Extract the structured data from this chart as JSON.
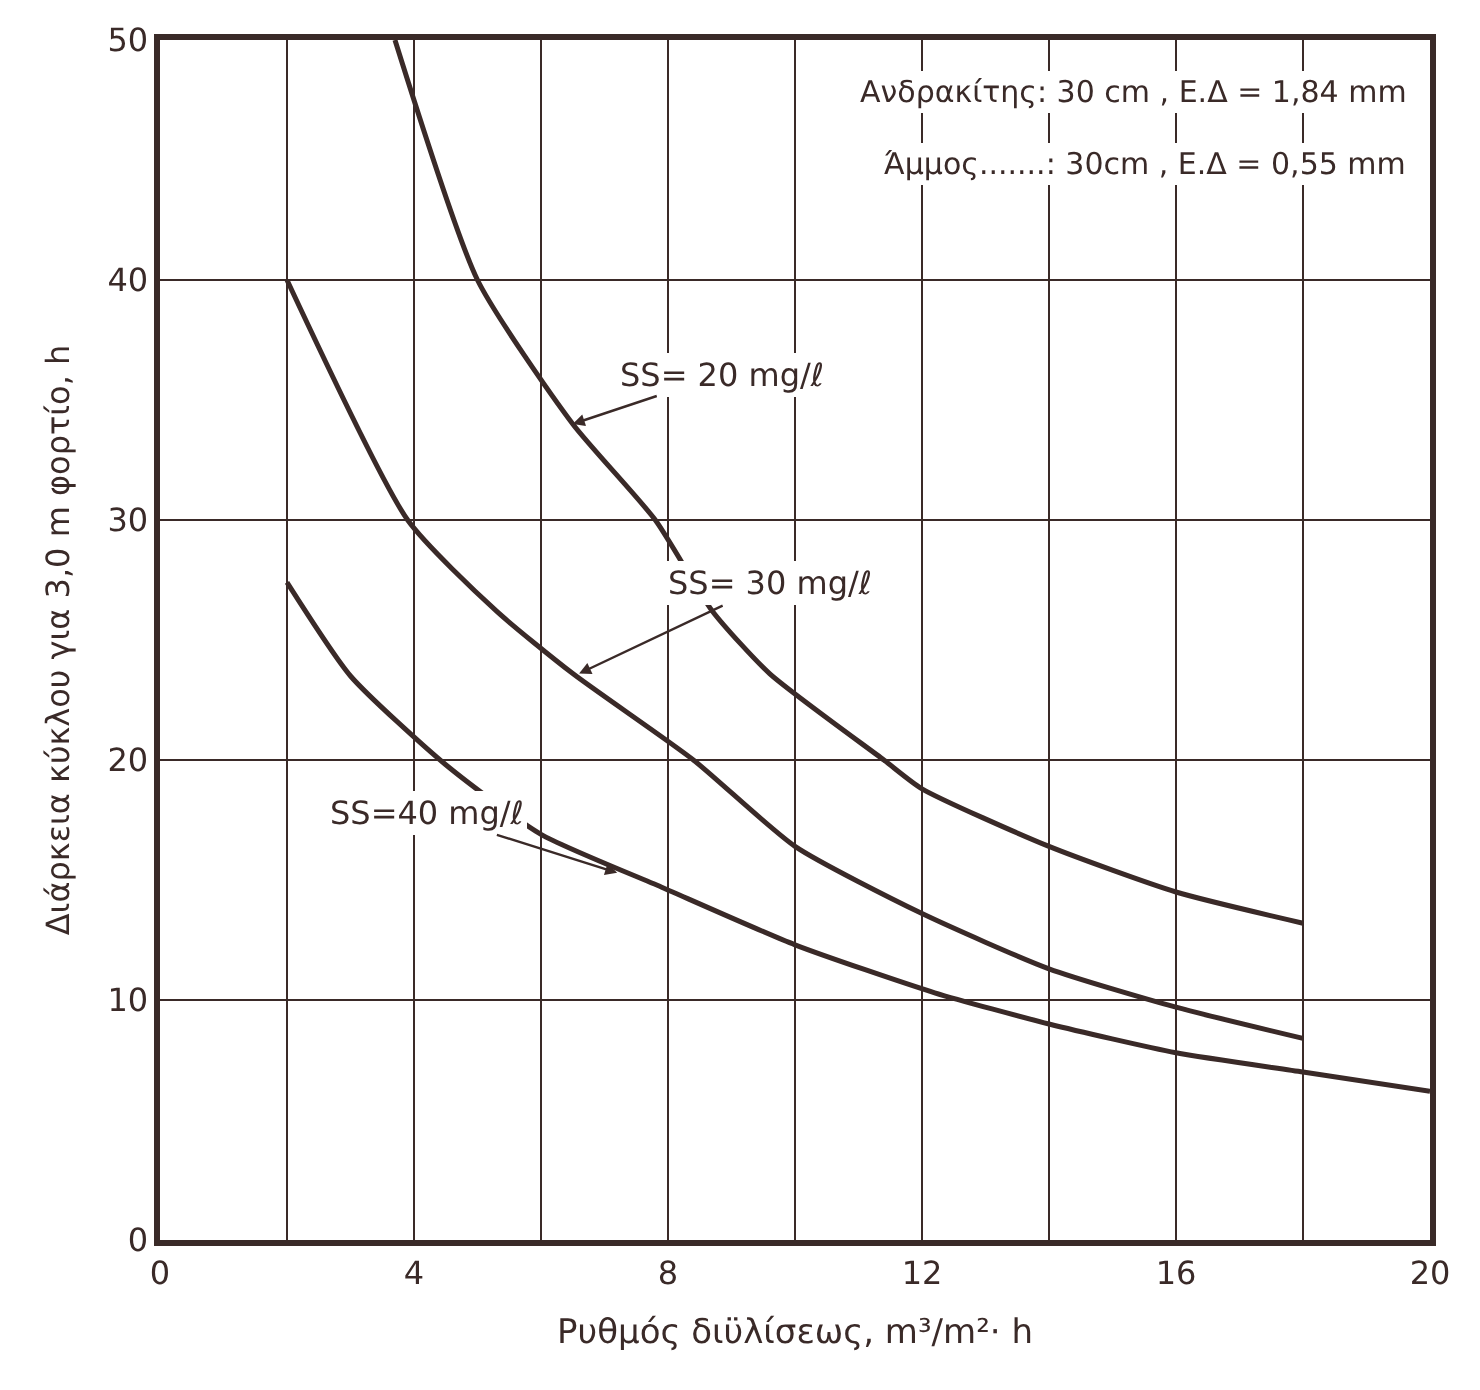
{
  "chart_data": {
    "type": "line",
    "xlabel": "Ρυθμός διϋλίσεως, m³/m²· h",
    "ylabel": "Διάρκεια κύκλου για 3,0 m φορτίο, h",
    "xlim": [
      0,
      20
    ],
    "ylim": [
      0,
      50
    ],
    "xticks": [
      0,
      {
        "value": 2,
        "label": null
      },
      4,
      {
        "value": 6,
        "label": null
      },
      8,
      {
        "value": 10,
        "label": null
      },
      12,
      {
        "value": 14,
        "label": null
      },
      16,
      {
        "value": 18,
        "label": null
      },
      20
    ],
    "yticks": [
      0,
      10,
      20,
      30,
      40,
      50
    ],
    "grid": true,
    "marker": "none",
    "line_style": "solid",
    "series": [
      {
        "color": "#3a2a28",
        "x": [
          3.7,
          5.0,
          6.5,
          7.8,
          8.7,
          9.6,
          11.4,
          12.0,
          14.0,
          16.0,
          18.0
        ],
        "values": [
          50,
          40,
          34,
          30,
          26.2,
          23.6,
          20,
          18.8,
          16.4,
          14.5,
          13.2
        ]
      },
      {
        "color": "#3a2a28",
        "x": [
          2.0,
          3.9,
          5.3,
          6.5,
          8.4,
          10.0,
          12.0,
          14.0,
          16.0,
          18.0
        ],
        "values": [
          40,
          30,
          26.2,
          23.6,
          20,
          16.4,
          13.6,
          11.3,
          9.7,
          8.4
        ]
      },
      {
        "color": "#3a2a28",
        "x": [
          2.0,
          3.0,
          4.5,
          6.0,
          7.9,
          10.0,
          12.2,
          14.0,
          16.0,
          18.0,
          20.0
        ],
        "values": [
          27.4,
          23.5,
          19.8,
          16.9,
          14.7,
          12.3,
          10.3,
          9.0,
          7.8,
          7.0,
          6.2
        ]
      }
    ],
    "annotations": [
      {
        "text": "SS= 20 mg/ℓ",
        "x": 6.5,
        "y": 34
      },
      {
        "text": "SS= 30 mg/ℓ",
        "x": 6.6,
        "y": 23.6
      },
      {
        "text": "SS=40 mg/ℓ",
        "x": 7.2,
        "y": 15.3
      },
      "Ανδρακίτης: 30 cm , Ε.Δ = 1,84 mm",
      "Άμμος.......: 30cm , Ε.Δ = 0,55 mm"
    ]
  }
}
